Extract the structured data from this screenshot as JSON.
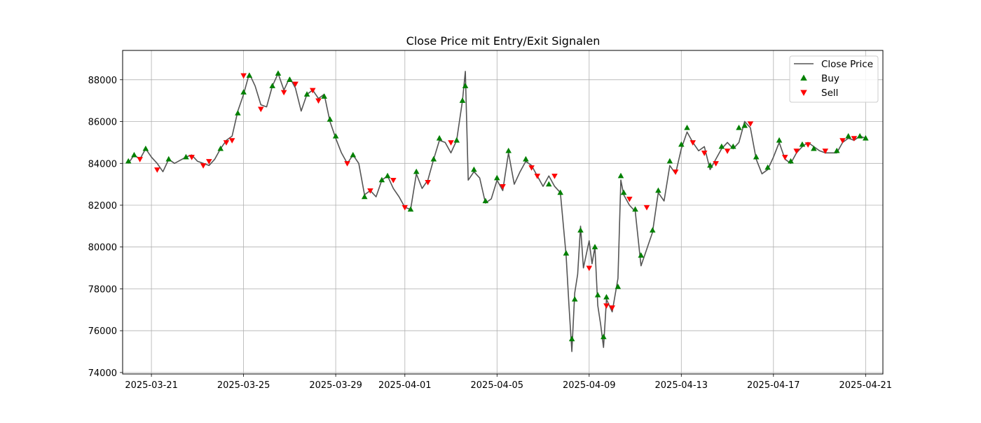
{
  "chart_data": {
    "type": "line",
    "title": "Close Price mit Entry/Exit Signalen",
    "xlabel": "",
    "ylabel": "",
    "x_ticks": [
      "2025-03-21",
      "2025-03-25",
      "2025-03-29",
      "2025-04-01",
      "2025-04-05",
      "2025-04-09",
      "2025-04-13",
      "2025-04-17",
      "2025-04-21"
    ],
    "y_ticks": [
      74000,
      76000,
      78000,
      80000,
      82000,
      84000,
      86000,
      88000
    ],
    "xlim": [
      "2025-03-19T18:00",
      "2025-04-21T18:00"
    ],
    "ylim": [
      73930,
      89400
    ],
    "grid": true,
    "legend_position": "top-right",
    "series": [
      {
        "name": "Close Price",
        "color": "#555555",
        "points": [
          [
            "2025-03-20T00:00",
            84000
          ],
          [
            "2025-03-20T06:00",
            84400
          ],
          [
            "2025-03-20T12:00",
            84200
          ],
          [
            "2025-03-20T18:00",
            84700
          ],
          [
            "2025-03-21T00:00",
            84300
          ],
          [
            "2025-03-21T06:00",
            84000
          ],
          [
            "2025-03-21T12:00",
            83600
          ],
          [
            "2025-03-21T18:00",
            84200
          ],
          [
            "2025-03-22T00:00",
            84000
          ],
          [
            "2025-03-22T12:00",
            84300
          ],
          [
            "2025-03-22T18:00",
            84400
          ],
          [
            "2025-03-23T00:00",
            84100
          ],
          [
            "2025-03-23T12:00",
            83900
          ],
          [
            "2025-03-23T18:00",
            84200
          ],
          [
            "2025-03-24T00:00",
            84700
          ],
          [
            "2025-03-24T06:00",
            85100
          ],
          [
            "2025-03-24T12:00",
            85300
          ],
          [
            "2025-03-24T18:00",
            86500
          ],
          [
            "2025-03-25T00:00",
            87300
          ],
          [
            "2025-03-25T06:00",
            88300
          ],
          [
            "2025-03-25T12:00",
            87700
          ],
          [
            "2025-03-25T18:00",
            86800
          ],
          [
            "2025-03-26T00:00",
            86700
          ],
          [
            "2025-03-26T06:00",
            87700
          ],
          [
            "2025-03-26T12:00",
            88300
          ],
          [
            "2025-03-26T18:00",
            87500
          ],
          [
            "2025-03-27T00:00",
            88100
          ],
          [
            "2025-03-27T06:00",
            87600
          ],
          [
            "2025-03-27T12:00",
            86500
          ],
          [
            "2025-03-27T18:00",
            87300
          ],
          [
            "2025-03-28T00:00",
            87500
          ],
          [
            "2025-03-28T06:00",
            87100
          ],
          [
            "2025-03-28T12:00",
            87300
          ],
          [
            "2025-03-28T18:00",
            86000
          ],
          [
            "2025-03-29T00:00",
            85200
          ],
          [
            "2025-03-29T06:00",
            84500
          ],
          [
            "2025-03-29T12:00",
            84000
          ],
          [
            "2025-03-29T18:00",
            84400
          ],
          [
            "2025-03-30T00:00",
            84000
          ],
          [
            "2025-03-30T06:00",
            82500
          ],
          [
            "2025-03-30T12:00",
            82700
          ],
          [
            "2025-03-30T18:00",
            82400
          ],
          [
            "2025-03-31T00:00",
            83200
          ],
          [
            "2025-03-31T06:00",
            83400
          ],
          [
            "2025-03-31T12:00",
            82800
          ],
          [
            "2025-03-31T18:00",
            82400
          ],
          [
            "2025-04-01T00:00",
            81900
          ],
          [
            "2025-04-01T06:00",
            81800
          ],
          [
            "2025-04-01T12:00",
            83500
          ],
          [
            "2025-04-01T18:00",
            82800
          ],
          [
            "2025-04-02T00:00",
            83200
          ],
          [
            "2025-04-02T06:00",
            84200
          ],
          [
            "2025-04-02T12:00",
            85100
          ],
          [
            "2025-04-02T18:00",
            85000
          ],
          [
            "2025-04-03T00:00",
            84500
          ],
          [
            "2025-04-03T06:00",
            85100
          ],
          [
            "2025-04-03T12:00",
            87000
          ],
          [
            "2025-04-03T15:00",
            88400
          ],
          [
            "2025-04-03T18:00",
            83200
          ],
          [
            "2025-04-04T00:00",
            83600
          ],
          [
            "2025-04-04T06:00",
            83300
          ],
          [
            "2025-04-04T12:00",
            82100
          ],
          [
            "2025-04-04T18:00",
            82300
          ],
          [
            "2025-04-05T00:00",
            83200
          ],
          [
            "2025-04-05T06:00",
            82700
          ],
          [
            "2025-04-05T12:00",
            84500
          ],
          [
            "2025-04-05T18:00",
            83000
          ],
          [
            "2025-04-06T00:00",
            83600
          ],
          [
            "2025-04-06T06:00",
            84100
          ],
          [
            "2025-04-06T12:00",
            83900
          ],
          [
            "2025-04-06T18:00",
            83400
          ],
          [
            "2025-04-07T00:00",
            82900
          ],
          [
            "2025-04-07T06:00",
            83400
          ],
          [
            "2025-04-07T12:00",
            82900
          ],
          [
            "2025-04-07T18:00",
            82600
          ],
          [
            "2025-04-08T00:00",
            79600
          ],
          [
            "2025-04-08T03:00",
            77200
          ],
          [
            "2025-04-08T06:00",
            75000
          ],
          [
            "2025-04-08T09:00",
            77800
          ],
          [
            "2025-04-08T12:00",
            78700
          ],
          [
            "2025-04-08T15:00",
            81000
          ],
          [
            "2025-04-08T18:00",
            79000
          ],
          [
            "2025-04-09T00:00",
            80300
          ],
          [
            "2025-04-09T03:00",
            79200
          ],
          [
            "2025-04-09T06:00",
            80000
          ],
          [
            "2025-04-09T09:00",
            77200
          ],
          [
            "2025-04-09T12:00",
            76300
          ],
          [
            "2025-04-09T15:00",
            75200
          ],
          [
            "2025-04-09T18:00",
            77500
          ],
          [
            "2025-04-10T00:00",
            76900
          ],
          [
            "2025-04-10T06:00",
            78500
          ],
          [
            "2025-04-10T09:00",
            83200
          ],
          [
            "2025-04-10T12:00",
            82500
          ],
          [
            "2025-04-10T18:00",
            82000
          ],
          [
            "2025-04-11T00:00",
            81700
          ],
          [
            "2025-04-11T06:00",
            79100
          ],
          [
            "2025-04-11T12:00",
            79900
          ],
          [
            "2025-04-11T18:00",
            80700
          ],
          [
            "2025-04-12T00:00",
            82600
          ],
          [
            "2025-04-12T06:00",
            82200
          ],
          [
            "2025-04-12T12:00",
            83900
          ],
          [
            "2025-04-12T18:00",
            83500
          ],
          [
            "2025-04-13T00:00",
            84700
          ],
          [
            "2025-04-13T06:00",
            85500
          ],
          [
            "2025-04-13T12:00",
            85000
          ],
          [
            "2025-04-13T18:00",
            84600
          ],
          [
            "2025-04-14T00:00",
            84800
          ],
          [
            "2025-04-14T06:00",
            83700
          ],
          [
            "2025-04-14T12:00",
            84200
          ],
          [
            "2025-04-14T18:00",
            84700
          ],
          [
            "2025-04-15T00:00",
            85000
          ],
          [
            "2025-04-15T06:00",
            84700
          ],
          [
            "2025-04-15T12:00",
            85000
          ],
          [
            "2025-04-15T18:00",
            86000
          ],
          [
            "2025-04-16T00:00",
            85700
          ],
          [
            "2025-04-16T06:00",
            84200
          ],
          [
            "2025-04-16T12:00",
            83500
          ],
          [
            "2025-04-16T18:00",
            83700
          ],
          [
            "2025-04-17T00:00",
            84300
          ],
          [
            "2025-04-17T06:00",
            85000
          ],
          [
            "2025-04-17T12:00",
            84200
          ],
          [
            "2025-04-17T18:00",
            84000
          ],
          [
            "2025-04-18T00:00",
            84500
          ],
          [
            "2025-04-18T06:00",
            84800
          ],
          [
            "2025-04-18T12:00",
            85000
          ],
          [
            "2025-04-18T18:00",
            84800
          ],
          [
            "2025-04-19T00:00",
            84600
          ],
          [
            "2025-04-19T06:00",
            84500
          ],
          [
            "2025-04-19T12:00",
            84500
          ],
          [
            "2025-04-19T18:00",
            84500
          ],
          [
            "2025-04-20T00:00",
            85000
          ],
          [
            "2025-04-20T06:00",
            85200
          ],
          [
            "2025-04-20T12:00",
            85100
          ],
          [
            "2025-04-20T18:00",
            85300
          ],
          [
            "2025-04-21T00:00",
            85200
          ]
        ]
      },
      {
        "name": "Buy",
        "color": "#008000",
        "marker": "triangle-up",
        "points": [
          [
            "2025-03-20T00:00",
            84100
          ],
          [
            "2025-03-20T06:00",
            84400
          ],
          [
            "2025-03-20T18:00",
            84700
          ],
          [
            "2025-03-21T18:00",
            84200
          ],
          [
            "2025-03-22T12:00",
            84300
          ],
          [
            "2025-03-24T00:00",
            84700
          ],
          [
            "2025-03-24T18:00",
            86400
          ],
          [
            "2025-03-25T00:00",
            87400
          ],
          [
            "2025-03-25T06:00",
            88200
          ],
          [
            "2025-03-26T06:00",
            87700
          ],
          [
            "2025-03-26T12:00",
            88300
          ],
          [
            "2025-03-27T00:00",
            88000
          ],
          [
            "2025-03-27T18:00",
            87300
          ],
          [
            "2025-03-28T12:00",
            87200
          ],
          [
            "2025-03-28T18:00",
            86100
          ],
          [
            "2025-03-29T00:00",
            85300
          ],
          [
            "2025-03-29T18:00",
            84400
          ],
          [
            "2025-03-30T06:00",
            82400
          ],
          [
            "2025-03-31T00:00",
            83200
          ],
          [
            "2025-03-31T06:00",
            83400
          ],
          [
            "2025-04-01T06:00",
            81800
          ],
          [
            "2025-04-01T12:00",
            83600
          ],
          [
            "2025-04-02T06:00",
            84200
          ],
          [
            "2025-04-02T12:00",
            85200
          ],
          [
            "2025-04-03T06:00",
            85100
          ],
          [
            "2025-04-03T12:00",
            87000
          ],
          [
            "2025-04-03T15:00",
            87700
          ],
          [
            "2025-04-04T00:00",
            83700
          ],
          [
            "2025-04-04T12:00",
            82200
          ],
          [
            "2025-04-05T00:00",
            83300
          ],
          [
            "2025-04-05T12:00",
            84600
          ],
          [
            "2025-04-06T06:00",
            84200
          ],
          [
            "2025-04-07T06:00",
            83000
          ],
          [
            "2025-04-07T18:00",
            82600
          ],
          [
            "2025-04-08T00:00",
            79700
          ],
          [
            "2025-04-08T06:00",
            75600
          ],
          [
            "2025-04-08T09:00",
            77500
          ],
          [
            "2025-04-08T15:00",
            80800
          ],
          [
            "2025-04-09T06:00",
            80000
          ],
          [
            "2025-04-09T09:00",
            77700
          ],
          [
            "2025-04-09T15:00",
            75700
          ],
          [
            "2025-04-09T18:00",
            77600
          ],
          [
            "2025-04-10T06:00",
            78100
          ],
          [
            "2025-04-10T09:00",
            83400
          ],
          [
            "2025-04-10T12:00",
            82600
          ],
          [
            "2025-04-11T00:00",
            81800
          ],
          [
            "2025-04-11T06:00",
            79600
          ],
          [
            "2025-04-11T18:00",
            80800
          ],
          [
            "2025-04-12T00:00",
            82700
          ],
          [
            "2025-04-12T12:00",
            84100
          ],
          [
            "2025-04-13T00:00",
            84900
          ],
          [
            "2025-04-13T06:00",
            85700
          ],
          [
            "2025-04-14T06:00",
            83900
          ],
          [
            "2025-04-14T18:00",
            84800
          ],
          [
            "2025-04-15T06:00",
            84800
          ],
          [
            "2025-04-15T12:00",
            85700
          ],
          [
            "2025-04-15T18:00",
            85800
          ],
          [
            "2025-04-16T06:00",
            84300
          ],
          [
            "2025-04-16T18:00",
            83800
          ],
          [
            "2025-04-17T06:00",
            85100
          ],
          [
            "2025-04-17T18:00",
            84100
          ],
          [
            "2025-04-18T06:00",
            84900
          ],
          [
            "2025-04-18T18:00",
            84700
          ],
          [
            "2025-04-19T18:00",
            84600
          ],
          [
            "2025-04-20T06:00",
            85300
          ],
          [
            "2025-04-20T18:00",
            85300
          ],
          [
            "2025-04-21T00:00",
            85200
          ]
        ]
      },
      {
        "name": "Sell",
        "color": "#ff0000",
        "marker": "triangle-down",
        "points": [
          [
            "2025-03-20T12:00",
            84200
          ],
          [
            "2025-03-21T06:00",
            83700
          ],
          [
            "2025-03-22T18:00",
            84300
          ],
          [
            "2025-03-23T06:00",
            83900
          ],
          [
            "2025-03-23T12:00",
            84100
          ],
          [
            "2025-03-24T06:00",
            85000
          ],
          [
            "2025-03-24T12:00",
            85100
          ],
          [
            "2025-03-25T00:00",
            88200
          ],
          [
            "2025-03-25T18:00",
            86600
          ],
          [
            "2025-03-26T18:00",
            87400
          ],
          [
            "2025-03-27T06:00",
            87800
          ],
          [
            "2025-03-28T00:00",
            87500
          ],
          [
            "2025-03-28T06:00",
            87000
          ],
          [
            "2025-03-29T12:00",
            84000
          ],
          [
            "2025-03-30T12:00",
            82700
          ],
          [
            "2025-03-31T12:00",
            83200
          ],
          [
            "2025-04-01T00:00",
            81900
          ],
          [
            "2025-04-02T00:00",
            83100
          ],
          [
            "2025-04-03T00:00",
            85000
          ],
          [
            "2025-04-05T06:00",
            82900
          ],
          [
            "2025-04-06T12:00",
            83800
          ],
          [
            "2025-04-06T18:00",
            83400
          ],
          [
            "2025-04-07T12:00",
            83400
          ],
          [
            "2025-04-09T00:00",
            79000
          ],
          [
            "2025-04-09T18:00",
            77200
          ],
          [
            "2025-04-10T00:00",
            77100
          ],
          [
            "2025-04-10T18:00",
            82300
          ],
          [
            "2025-04-11T12:00",
            81900
          ],
          [
            "2025-04-12T18:00",
            83600
          ],
          [
            "2025-04-13T12:00",
            85000
          ],
          [
            "2025-04-14T00:00",
            84500
          ],
          [
            "2025-04-14T12:00",
            84000
          ],
          [
            "2025-04-15T00:00",
            84600
          ],
          [
            "2025-04-16T00:00",
            85900
          ],
          [
            "2025-04-17T12:00",
            84300
          ],
          [
            "2025-04-18T00:00",
            84600
          ],
          [
            "2025-04-18T12:00",
            84900
          ],
          [
            "2025-04-19T06:00",
            84600
          ],
          [
            "2025-04-20T00:00",
            85100
          ],
          [
            "2025-04-20T12:00",
            85200
          ]
        ]
      }
    ]
  }
}
